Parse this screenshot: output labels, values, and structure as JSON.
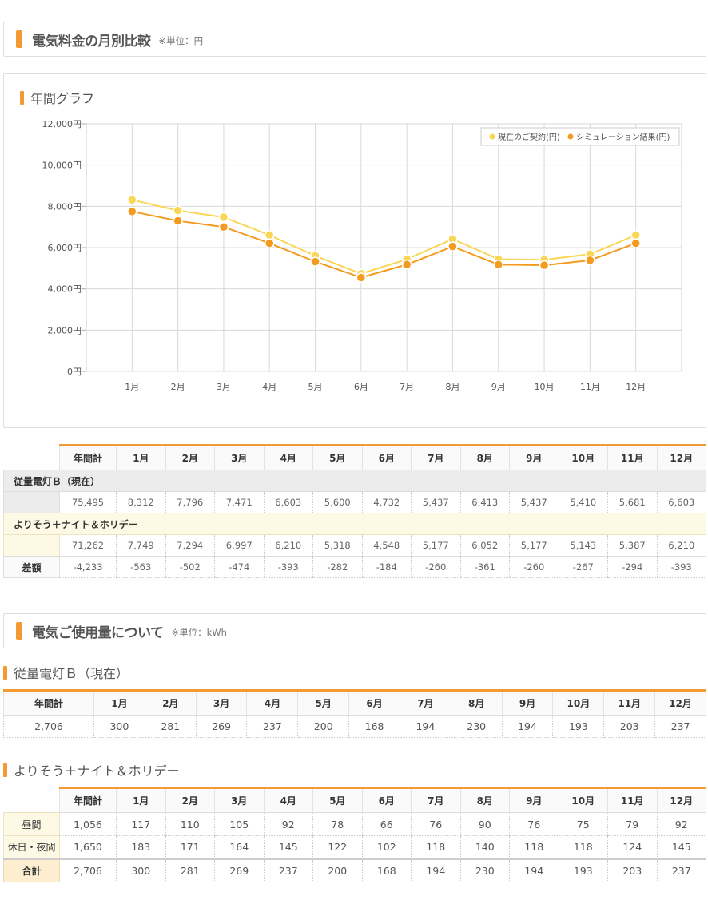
{
  "section1": {
    "title": "電気料金の月別比較",
    "unit": "※単位：円"
  },
  "graph": {
    "title": "年間グラフ"
  },
  "chart_data": {
    "type": "line",
    "categories": [
      "1月",
      "2月",
      "3月",
      "4月",
      "5月",
      "6月",
      "7月",
      "8月",
      "9月",
      "10月",
      "11月",
      "12月"
    ],
    "series": [
      {
        "name": "現在のご契約(円)",
        "values": [
          8312,
          7796,
          7471,
          6603,
          5600,
          4732,
          5437,
          6413,
          5437,
          5410,
          5681,
          6603
        ],
        "color": "#f9d655"
      },
      {
        "name": "シミュレーション結果(円)",
        "values": [
          7749,
          7294,
          6997,
          6210,
          5318,
          4548,
          5177,
          6052,
          5177,
          5143,
          5387,
          6210
        ],
        "color": "#f39a1f"
      }
    ],
    "yticks": [
      "0円",
      "2,000円",
      "4,000円",
      "6,000円",
      "8,000円",
      "10,000円",
      "12,000円"
    ],
    "ylim": [
      0,
      12000
    ],
    "grid": true,
    "legend": "top-right"
  },
  "table1": {
    "headers": [
      "年間計",
      "1月",
      "2月",
      "3月",
      "4月",
      "5月",
      "6月",
      "7月",
      "8月",
      "9月",
      "10月",
      "11月",
      "12月"
    ],
    "plan_current": {
      "label": "従量電灯Ｂ（現在）",
      "values": [
        "75,495",
        "8,312",
        "7,796",
        "7,471",
        "6,603",
        "5,600",
        "4,732",
        "5,437",
        "6,413",
        "5,437",
        "5,410",
        "5,681",
        "6,603"
      ]
    },
    "plan_sim": {
      "label": "よりそう＋ナイト＆ホリデー",
      "values": [
        "71,262",
        "7,749",
        "7,294",
        "6,997",
        "6,210",
        "5,318",
        "4,548",
        "5,177",
        "6,052",
        "5,177",
        "5,143",
        "5,387",
        "6,210"
      ]
    },
    "diff": {
      "label": "差額",
      "values": [
        "-4,233",
        "-563",
        "-502",
        "-474",
        "-393",
        "-282",
        "-184",
        "-260",
        "-361",
        "-260",
        "-267",
        "-294",
        "-393"
      ]
    }
  },
  "section2": {
    "title": "電気ご使用量について",
    "unit": "※単位：kWh"
  },
  "usage_current": {
    "title": "従量電灯Ｂ（現在）",
    "headers": [
      "年間計",
      "1月",
      "2月",
      "3月",
      "4月",
      "5月",
      "6月",
      "7月",
      "8月",
      "9月",
      "10月",
      "11月",
      "12月"
    ],
    "values": [
      "2,706",
      "300",
      "281",
      "269",
      "237",
      "200",
      "168",
      "194",
      "230",
      "194",
      "193",
      "203",
      "237"
    ]
  },
  "usage_sim": {
    "title": "よりそう＋ナイト＆ホリデー",
    "headers": [
      "年間計",
      "1月",
      "2月",
      "3月",
      "4月",
      "5月",
      "6月",
      "7月",
      "8月",
      "9月",
      "10月",
      "11月",
      "12月"
    ],
    "rows": [
      {
        "label": "昼間",
        "values": [
          "1,056",
          "117",
          "110",
          "105",
          "92",
          "78",
          "66",
          "76",
          "90",
          "76",
          "75",
          "79",
          "92"
        ]
      },
      {
        "label": "休日・夜間",
        "values": [
          "1,650",
          "183",
          "171",
          "164",
          "145",
          "122",
          "102",
          "118",
          "140",
          "118",
          "118",
          "124",
          "145"
        ]
      },
      {
        "label": "合計",
        "values": [
          "2,706",
          "300",
          "281",
          "269",
          "237",
          "200",
          "168",
          "194",
          "230",
          "194",
          "193",
          "203",
          "237"
        ]
      }
    ]
  }
}
